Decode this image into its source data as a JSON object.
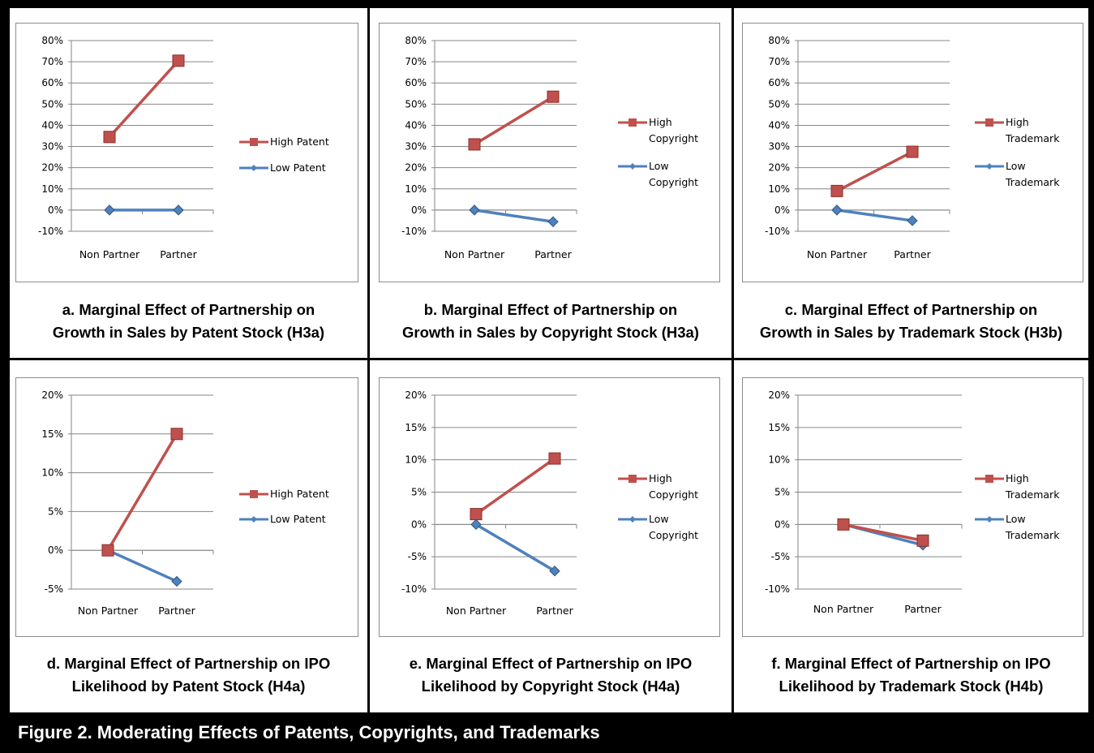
{
  "figure_title": "Figure 2.  Moderating Effects of Patents, Copyrights, and Trademarks",
  "colors": {
    "high": "#C0504D",
    "low": "#4F81BD",
    "grid": "#868686"
  },
  "panels": [
    {
      "caption_line1": "a.  Marginal Effect of Partnership on",
      "caption_line2": "Growth in Sales by Patent Stock (H3a)"
    },
    {
      "caption_line1": "b.  Marginal Effect of Partnership on",
      "caption_line2": "Growth in Sales by Copyright Stock (H3a)"
    },
    {
      "caption_line1": "c.  Marginal Effect of Partnership on",
      "caption_line2": "Growth in Sales by Trademark Stock (H3b)"
    },
    {
      "caption_line1": "d.  Marginal Effect of Partnership on IPO",
      "caption_line2": "Likelihood by Patent Stock (H4a)"
    },
    {
      "caption_line1": "e.  Marginal Effect of Partnership on IPO",
      "caption_line2": "Likelihood by Copyright Stock (H4a)"
    },
    {
      "caption_line1": "f.  Marginal Effect of Partnership on IPO",
      "caption_line2": "Likelihood by Trademark Stock (H4b)"
    }
  ],
  "chart_data": [
    {
      "type": "line",
      "categories": [
        "Non Partner",
        "Partner"
      ],
      "yticks": [
        "80%",
        "70%",
        "60%",
        "50%",
        "40%",
        "30%",
        "20%",
        "10%",
        "0%",
        "-10%"
      ],
      "ylim": [
        -10,
        80
      ],
      "series": [
        {
          "name": "High Patent",
          "values": [
            34.5,
            70.5
          ],
          "marker": "square"
        },
        {
          "name": "Low Patent",
          "values": [
            0,
            0
          ],
          "marker": "diamond"
        }
      ],
      "legend": "right"
    },
    {
      "type": "line",
      "categories": [
        "Non Partner",
        "Partner"
      ],
      "yticks": [
        "80%",
        "70%",
        "60%",
        "50%",
        "40%",
        "30%",
        "20%",
        "10%",
        "0%",
        "-10%"
      ],
      "ylim": [
        -10,
        80
      ],
      "series": [
        {
          "name": "High Copyright",
          "values": [
            31,
            53.5
          ],
          "marker": "square"
        },
        {
          "name": "Low Copyright",
          "values": [
            0,
            -5.5
          ],
          "marker": "diamond"
        }
      ],
      "legend": "right"
    },
    {
      "type": "line",
      "categories": [
        "Non Partner",
        "Partner"
      ],
      "yticks": [
        "80%",
        "70%",
        "60%",
        "50%",
        "40%",
        "30%",
        "20%",
        "10%",
        "0%",
        "-10%"
      ],
      "ylim": [
        -10,
        80
      ],
      "series": [
        {
          "name": "High Trademark",
          "values": [
            9,
            27.5
          ],
          "marker": "square"
        },
        {
          "name": "Low Trademark",
          "values": [
            0,
            -5
          ],
          "marker": "diamond"
        }
      ],
      "legend": "right"
    },
    {
      "type": "line",
      "categories": [
        "Non Partner",
        "Partner"
      ],
      "yticks": [
        "20%",
        "15%",
        "10%",
        "5%",
        "0%",
        "-5%"
      ],
      "ylim": [
        -5,
        20
      ],
      "series": [
        {
          "name": "High Patent",
          "values": [
            0,
            15
          ],
          "marker": "square"
        },
        {
          "name": "Low Patent",
          "values": [
            0,
            -4
          ],
          "marker": "diamond"
        }
      ],
      "legend": "right"
    },
    {
      "type": "line",
      "categories": [
        "Non Partner",
        "Partner"
      ],
      "yticks": [
        "20%",
        "15%",
        "10%",
        "5%",
        "0%",
        "-5%",
        "-10%"
      ],
      "ylim": [
        -10,
        20
      ],
      "series": [
        {
          "name": "High Copyright",
          "values": [
            1.6,
            10.2
          ],
          "marker": "square"
        },
        {
          "name": "Low Copyright",
          "values": [
            0,
            -7.2
          ],
          "marker": "diamond"
        }
      ],
      "legend": "right"
    },
    {
      "type": "line",
      "categories": [
        "Non Partner",
        "Partner"
      ],
      "yticks": [
        "20%",
        "15%",
        "10%",
        "5%",
        "0%",
        "-5%",
        "-10%"
      ],
      "ylim": [
        -10,
        20
      ],
      "series": [
        {
          "name": "High Trademark",
          "values": [
            0,
            -2.5
          ],
          "marker": "square"
        },
        {
          "name": "Low Trademark",
          "values": [
            0,
            -3.2
          ],
          "marker": "diamond"
        }
      ],
      "legend": "right"
    }
  ]
}
